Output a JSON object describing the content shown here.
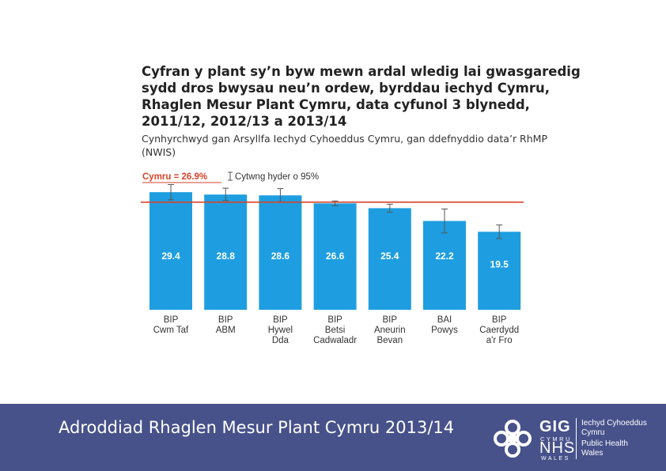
{
  "title": "Cyfran y plant sy’n byw mewn ardal wledig lai gwasgaredig sydd dros bwysau neu’n ordew, byrddau iechyd Cymru, Rhaglen Mesur Plant Cymru, data cyfunol 3 blynedd, 2011/12, 2012/13 a 2013/14",
  "subtitle": "Cynhyrchwyd gan Arsyllfa Iechyd Cyhoeddus Cymru, gan ddefnyddio data’r RhMP (NWIS)",
  "footer": {
    "title": "Adroddiad Rhaglen Mesur Plant Cymru 2013/14",
    "logo": {
      "gig": "GIG",
      "cymru": "CYMRU",
      "nhs": "NHS",
      "wales": "WALES",
      "org_cy_1": "Iechyd Cyhoeddus",
      "org_cy_2": "Cymru",
      "org_en_1": "Public Health",
      "org_en_2": "Wales"
    }
  },
  "chart_data": {
    "type": "bar",
    "legend": {
      "reference_label": "Cymru = 26.9%",
      "ci_label": "Cytwng hyder o 95%",
      "placement": "top-left"
    },
    "reference_value": 26.9,
    "ylim": [
      0,
      32
    ],
    "categories": [
      [
        "BIP",
        "Cwm Taf"
      ],
      [
        "BIP",
        "ABM"
      ],
      [
        "BIP",
        "Hywel",
        "Dda"
      ],
      [
        "BIP",
        "Betsi",
        "Cadwaladr"
      ],
      [
        "BIP",
        "Aneurin",
        "Bevan"
      ],
      [
        "BAI",
        "Powys"
      ],
      [
        "BIP",
        "Caerdydd",
        "a'r Fro"
      ]
    ],
    "values": [
      29.4,
      28.8,
      28.6,
      26.6,
      25.4,
      22.2,
      19.5
    ],
    "value_labels": [
      "29.4",
      "28.8",
      "28.6",
      "26.6",
      "25.4",
      "22.2",
      "19.5"
    ],
    "ci_lower": [
      27.5,
      27.3,
      27.0,
      26.0,
      24.4,
      19.2,
      17.8
    ],
    "ci_upper": [
      31.3,
      30.4,
      30.3,
      27.2,
      26.4,
      25.2,
      21.2
    ],
    "colors": {
      "bar": "#1e9ee0",
      "reference_line": "#d9432b",
      "value_text": "#ffffff",
      "error_bar": "#555555",
      "axis_text": "#333333"
    },
    "grid": false
  }
}
